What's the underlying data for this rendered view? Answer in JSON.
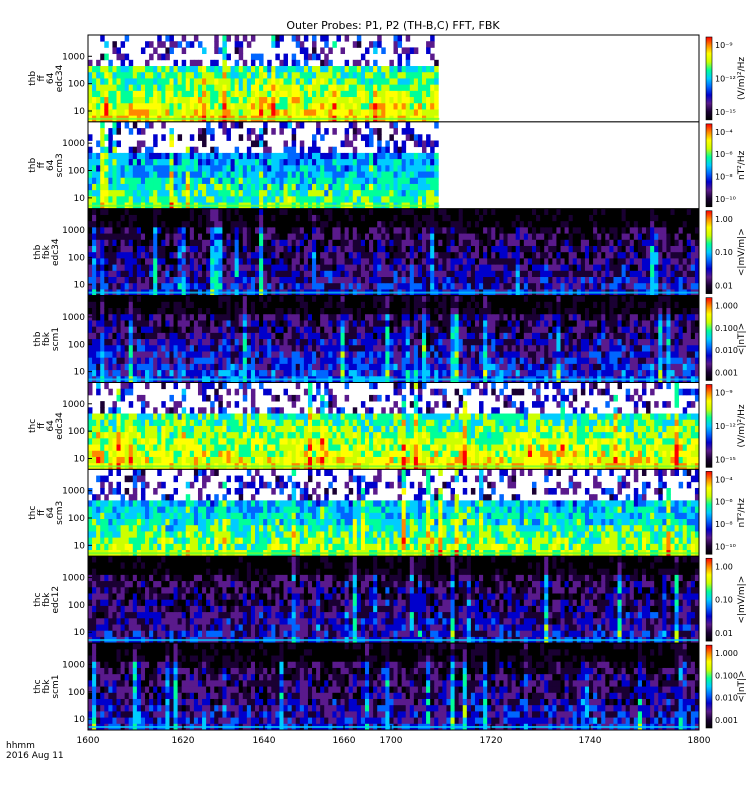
{
  "chart_data": {
    "type": "heatmap",
    "title": "Outer Probes: P1, P2 (TH-B,C) FFT, FBK",
    "x_axis": {
      "tick_labels": [
        "1600",
        "1620",
        "1640",
        "1660",
        "1700",
        "1720",
        "1740",
        "1800"
      ],
      "range_label": [
        "1600",
        "1800"
      ],
      "footer_unit": "hhmm",
      "footer_date": "2016 Aug 11"
    },
    "colormap": [
      "#000000",
      "#1a0033",
      "#5a1a8c",
      "#0000cc",
      "#0066ff",
      "#00ccff",
      "#00ff99",
      "#ccff00",
      "#ffff00",
      "#ff8800",
      "#ff0000"
    ],
    "panels": [
      {
        "ylabel": [
          "thb",
          "ff",
          "64",
          "edc34"
        ],
        "y_ticks": [
          "10",
          "100",
          "1000"
        ],
        "colorbar_label": "(V/m)²/Hz",
        "colorbar_ticks": [
          "10⁻⁹",
          "10⁻¹²",
          "10⁻¹⁵"
        ],
        "data_end_fraction": 0.575,
        "mean_level": 0.45,
        "background": "white"
      },
      {
        "ylabel": [
          "thb",
          "ff",
          "64",
          "scm3"
        ],
        "y_ticks": [
          "10",
          "100",
          "1000"
        ],
        "colorbar_label": "nT²/Hz",
        "colorbar_ticks": [
          "10⁻⁴",
          "10⁻⁶",
          "10⁻⁸",
          "10⁻¹⁰"
        ],
        "data_end_fraction": 0.575,
        "mean_level": 0.3,
        "background": "white"
      },
      {
        "ylabel": [
          "thb",
          "fbk",
          "edc34"
        ],
        "y_ticks": [
          "10",
          "100",
          "1000"
        ],
        "colorbar_label": "<|mV/m|>",
        "colorbar_ticks": [
          "1.00",
          "0.10",
          "0.01"
        ],
        "data_end_fraction": 1.0,
        "mean_level": 0.2,
        "background": "black"
      },
      {
        "ylabel": [
          "thb",
          "fbk",
          "scm1"
        ],
        "y_ticks": [
          "10",
          "100",
          "1000"
        ],
        "colorbar_label": "<|nT|>",
        "colorbar_ticks": [
          "1.000",
          "0.100",
          "0.010",
          "0.001"
        ],
        "data_end_fraction": 1.0,
        "mean_level": 0.25,
        "background": "black"
      },
      {
        "ylabel": [
          "thc",
          "ff",
          "64",
          "edc34"
        ],
        "y_ticks": [
          "10",
          "100",
          "1000"
        ],
        "colorbar_label": "(V/m)²/Hz",
        "colorbar_ticks": [
          "10⁻⁹",
          "10⁻¹²",
          "10⁻¹⁵"
        ],
        "data_end_fraction": 1.0,
        "mean_level": 0.45,
        "background": "white"
      },
      {
        "ylabel": [
          "thc",
          "ff",
          "64",
          "scm3"
        ],
        "y_ticks": [
          "10",
          "100",
          "1000"
        ],
        "colorbar_label": "nT²/Hz",
        "colorbar_ticks": [
          "10⁻⁴",
          "10⁻⁶",
          "10⁻⁸",
          "10⁻¹⁰"
        ],
        "data_end_fraction": 1.0,
        "mean_level": 0.35,
        "background": "white"
      },
      {
        "ylabel": [
          "thc",
          "fbk",
          "edc12"
        ],
        "y_ticks": [
          "10",
          "100",
          "1000"
        ],
        "colorbar_label": "<|mV/m|>",
        "colorbar_ticks": [
          "1.00",
          "0.10",
          "0.01"
        ],
        "data_end_fraction": 1.0,
        "mean_level": 0.2,
        "background": "black"
      },
      {
        "ylabel": [
          "thc",
          "fbk",
          "scm1"
        ],
        "y_ticks": [
          "10",
          "100",
          "1000"
        ],
        "colorbar_label": "<|nT|>",
        "colorbar_ticks": [
          "1.000",
          "0.100",
          "0.010",
          "0.001"
        ],
        "data_end_fraction": 1.0,
        "mean_level": 0.2,
        "background": "black"
      }
    ]
  }
}
